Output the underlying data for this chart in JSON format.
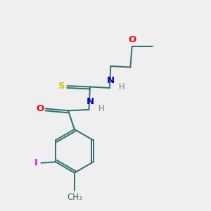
{
  "background_color": "#efefef",
  "bond_color": "#2d6e6e",
  "atom_colors": {
    "O": "#ff0000",
    "N": "#0000cd",
    "S": "#cccc00",
    "I": "#ee00ee",
    "H": "#708090"
  },
  "font_size": 8.5,
  "linewidth": 1.4,
  "figsize": [
    3.0,
    3.0
  ],
  "dpi": 100
}
